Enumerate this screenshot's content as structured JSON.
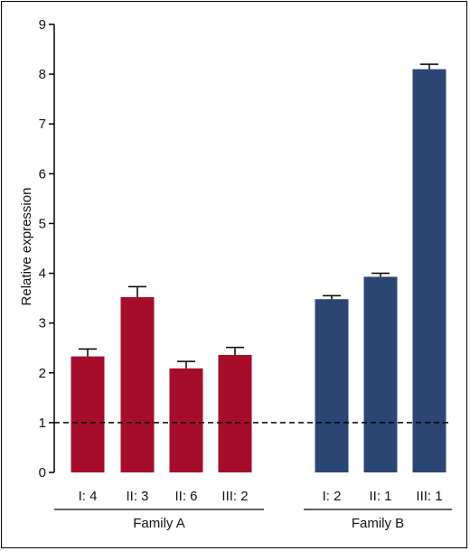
{
  "chart_data": {
    "type": "bar",
    "ylabel": "Relative expression",
    "xlabel": "",
    "title": "",
    "ylim": [
      0,
      9
    ],
    "yticks": [
      0,
      1,
      2,
      3,
      4,
      5,
      6,
      7,
      8,
      9
    ],
    "reference_line": {
      "value": 1,
      "style": "dashed"
    },
    "grid": false,
    "groups": [
      {
        "label": "Family A",
        "color": "#a50d2a",
        "bars": [
          {
            "category": "I: 4",
            "value": 2.33,
            "error": 0.15
          },
          {
            "category": "II: 3",
            "value": 3.52,
            "error": 0.21
          },
          {
            "category": "II: 6",
            "value": 2.09,
            "error": 0.14
          },
          {
            "category": "III: 2",
            "value": 2.36,
            "error": 0.15
          }
        ]
      },
      {
        "label": "Family B",
        "color": "#2c4674",
        "bars": [
          {
            "category": "I: 2",
            "value": 3.48,
            "error": 0.07
          },
          {
            "category": "II: 1",
            "value": 3.93,
            "error": 0.07
          },
          {
            "category": "III: 1",
            "value": 8.1,
            "error": 0.1
          }
        ]
      }
    ]
  }
}
